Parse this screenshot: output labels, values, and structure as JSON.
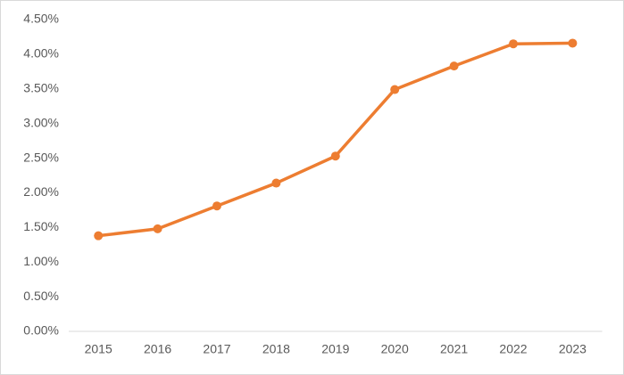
{
  "chart_data": {
    "type": "line",
    "categories": [
      "2015",
      "2016",
      "2017",
      "2018",
      "2019",
      "2020",
      "2021",
      "2022",
      "2023"
    ],
    "values": [
      1.38,
      1.48,
      1.81,
      2.14,
      2.53,
      3.49,
      3.83,
      4.15,
      4.16
    ],
    "color": "#ed7d31",
    "ylim": [
      0,
      4.5
    ],
    "yticks": [
      {
        "value": 0,
        "label": "0.00%"
      },
      {
        "value": 0.5,
        "label": "0.50%"
      },
      {
        "value": 1,
        "label": "1.00%"
      },
      {
        "value": 1.5,
        "label": "1.50%"
      },
      {
        "value": 2,
        "label": "2.00%"
      },
      {
        "value": 2.5,
        "label": "2.50%"
      },
      {
        "value": 3,
        "label": "3.00%"
      },
      {
        "value": 3.5,
        "label": "3.50%"
      },
      {
        "value": 4,
        "label": "4.00%"
      },
      {
        "value": 4.5,
        "label": "4.50%"
      }
    ],
    "grid": false
  }
}
